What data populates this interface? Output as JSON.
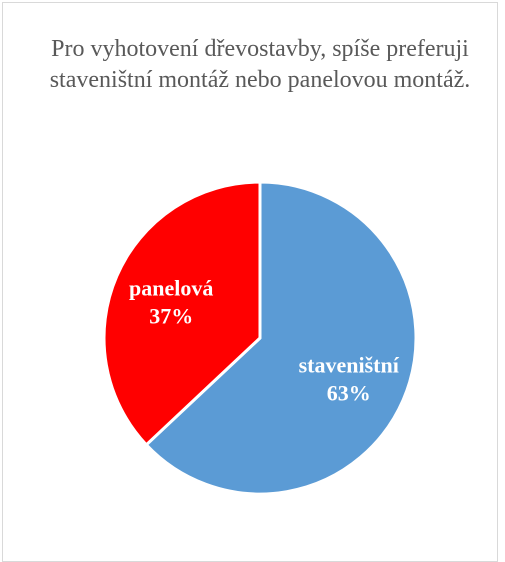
{
  "chart_data": {
    "type": "pie",
    "title": "Pro vyhotovení dřevostavby, spíše preferuji staveništní montáž nebo panelovou montáž.",
    "categories": [
      "staveništní",
      "panelová"
    ],
    "values": [
      63,
      37
    ],
    "labels": [
      "63%",
      "37%"
    ],
    "colors": [
      "#5b9bd5",
      "#ff0000"
    ],
    "start_angle_deg": 0,
    "direction": "clockwise",
    "legend": "none"
  }
}
